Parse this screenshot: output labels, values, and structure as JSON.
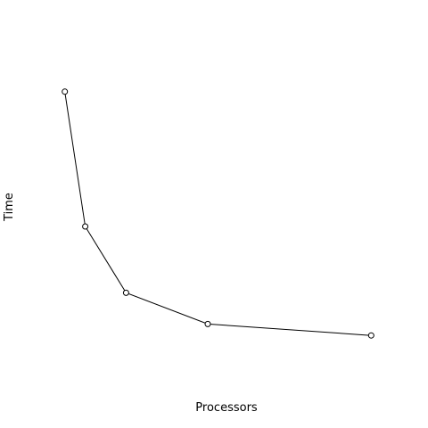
{
  "chart_data": {
    "type": "line",
    "xlabel": "Processors",
    "ylabel": "Time",
    "axes_drawn": false,
    "grid": false,
    "markers": "open-circle",
    "line_color": "#000000",
    "x": [
      1,
      2,
      4,
      8,
      16
    ],
    "values": [
      100,
      44.7,
      17.5,
      4.7,
      0
    ],
    "xlim": [
      0.4,
      16.6
    ],
    "ylim": [
      -16,
      116
    ]
  }
}
